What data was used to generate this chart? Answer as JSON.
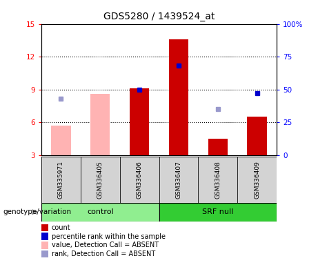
{
  "title": "GDS5280 / 1439524_at",
  "samples": [
    "GSM335971",
    "GSM336405",
    "GSM336406",
    "GSM336407",
    "GSM336408",
    "GSM336409"
  ],
  "bar_values": [
    null,
    null,
    9.1,
    13.6,
    4.5,
    6.5
  ],
  "bar_absent_values": [
    5.7,
    8.6,
    null,
    null,
    null,
    null
  ],
  "blue_dot_values": [
    null,
    null,
    50,
    68,
    null,
    47
  ],
  "blue_absent_dot_values": [
    43,
    null,
    null,
    null,
    35,
    null
  ],
  "ylim_left": [
    3,
    15
  ],
  "ylim_right": [
    0,
    100
  ],
  "yticks_left": [
    3,
    6,
    9,
    12,
    15
  ],
  "yticks_right": [
    0,
    25,
    50,
    75,
    100
  ],
  "yticklabels_left": [
    "3",
    "6",
    "9",
    "12",
    "15"
  ],
  "yticklabels_right": [
    "0",
    "25",
    "50",
    "75",
    "100%"
  ],
  "bar_color": "#cc0000",
  "bar_absent_color": "#ffb3b3",
  "dot_color": "#0000cc",
  "dot_absent_color": "#9999cc",
  "control_color": "#90ee90",
  "srf_color": "#33cc33",
  "sample_box_color": "#d3d3d3",
  "bar_width": 0.5,
  "group_label": "genotype/variation",
  "legend_items": [
    {
      "label": "count",
      "color": "#cc0000"
    },
    {
      "label": "percentile rank within the sample",
      "color": "#0000cc"
    },
    {
      "label": "value, Detection Call = ABSENT",
      "color": "#ffb3b3"
    },
    {
      "label": "rank, Detection Call = ABSENT",
      "color": "#9999cc"
    }
  ]
}
